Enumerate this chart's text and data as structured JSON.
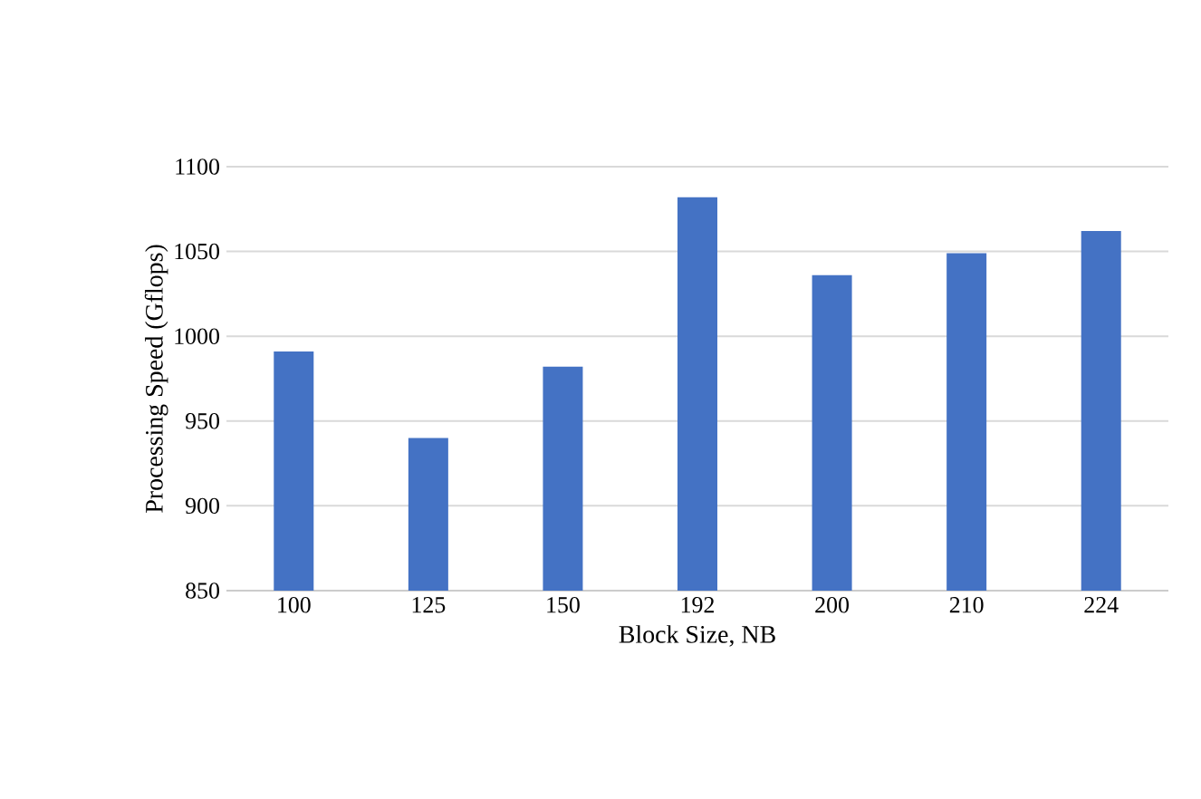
{
  "chart_data": {
    "type": "bar",
    "xlabel": "Block Size, NB",
    "ylabel": "Processing Speed  (Gflops)",
    "categories": [
      "100",
      "125",
      "150",
      "192",
      "200",
      "210",
      "224"
    ],
    "values": [
      991,
      940,
      982,
      1082,
      1036,
      1049,
      1062
    ],
    "color": "#4472c4",
    "ylim": [
      850,
      1100
    ],
    "yticks": [
      850,
      900,
      950,
      1000,
      1050,
      1100
    ],
    "grid": "y"
  }
}
